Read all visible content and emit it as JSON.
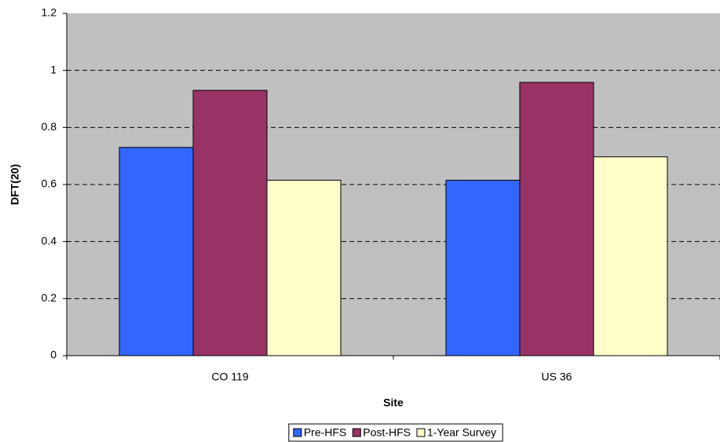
{
  "chart_data": {
    "type": "bar",
    "x_label": "Site",
    "y_label": "DFT(20)",
    "categories": [
      "CO 119",
      "US 36"
    ],
    "series": [
      {
        "name": "Pre-HFS",
        "color": "#3366ff",
        "values": [
          0.73,
          0.615
        ]
      },
      {
        "name": "Post-HFS",
        "color": "#993366",
        "values": [
          0.93,
          0.958
        ]
      },
      {
        "name": "1-Year Survey",
        "color": "#ffffcc",
        "values": [
          0.615,
          0.697
        ]
      }
    ],
    "ylim": [
      0,
      1.2
    ],
    "yticks": [
      0,
      0.2,
      0.4,
      0.6,
      0.8,
      1,
      1.2
    ],
    "grid": true,
    "legend": "bottom"
  }
}
